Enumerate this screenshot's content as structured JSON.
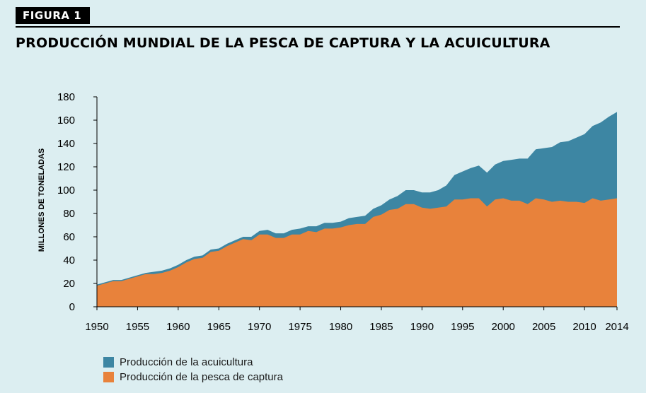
{
  "figure": {
    "label": "FIGURA 1",
    "title": "PRODUCCIÓN MUNDIAL DE LA PESCA DE CAPTURA Y LA ACUICULTURA"
  },
  "colors": {
    "aquaculture": "#3d86a3",
    "capture": "#e8823b",
    "background": "#dceef1"
  },
  "chart_data": {
    "type": "area",
    "stacked": true,
    "ylabel": "MILLONES DE TONELADAS",
    "xlabel": "",
    "ylim": [
      0,
      180
    ],
    "xlim": [
      1950,
      2014
    ],
    "yticks": [
      0,
      20,
      40,
      60,
      80,
      100,
      120,
      140,
      160,
      180
    ],
    "xticks": [
      1950,
      1955,
      1960,
      1965,
      1970,
      1975,
      1980,
      1985,
      1990,
      1995,
      2000,
      2005,
      2010,
      2014
    ],
    "grid": false,
    "legend_position": "bottom-left",
    "x": [
      1950,
      1951,
      1952,
      1953,
      1954,
      1955,
      1956,
      1957,
      1958,
      1959,
      1960,
      1961,
      1962,
      1963,
      1964,
      1965,
      1966,
      1967,
      1968,
      1969,
      1970,
      1971,
      1972,
      1973,
      1974,
      1975,
      1976,
      1977,
      1978,
      1979,
      1980,
      1981,
      1982,
      1983,
      1984,
      1985,
      1986,
      1987,
      1988,
      1989,
      1990,
      1991,
      1992,
      1993,
      1994,
      1995,
      1996,
      1997,
      1998,
      1999,
      2000,
      2001,
      2002,
      2003,
      2004,
      2005,
      2006,
      2007,
      2008,
      2009,
      2010,
      2011,
      2012,
      2013,
      2014
    ],
    "series": [
      {
        "name": "Producción de la pesca de captura",
        "values": [
          18,
          20,
          22,
          22,
          24,
          26,
          28,
          28,
          29,
          31,
          34,
          38,
          41,
          42,
          47,
          48,
          52,
          55,
          58,
          57,
          62,
          62,
          59,
          59,
          62,
          62,
          65,
          64,
          67,
          67,
          68,
          70,
          71,
          71,
          77,
          79,
          83,
          84,
          88,
          88,
          85,
          84,
          85,
          86,
          92,
          92,
          93,
          93,
          86,
          92,
          93,
          91,
          91,
          88,
          93,
          92,
          90,
          91,
          90,
          90,
          89,
          93,
          91,
          92,
          93
        ]
      },
      {
        "name": "Producción de la acuicultura",
        "values": [
          1,
          1,
          1,
          1,
          1,
          1,
          1,
          2,
          2,
          2,
          2,
          2,
          2,
          2,
          2,
          2,
          2,
          2,
          2,
          3,
          3,
          4,
          4,
          4,
          4,
          5,
          4,
          5,
          5,
          5,
          5,
          6,
          6,
          7,
          7,
          8,
          9,
          11,
          12,
          12,
          13,
          14,
          15,
          18,
          21,
          24,
          26,
          28,
          29,
          30,
          32,
          35,
          36,
          39,
          42,
          44,
          47,
          50,
          52,
          55,
          59,
          62,
          67,
          71,
          74
        ]
      }
    ]
  },
  "legend": {
    "items": [
      {
        "label": "Producción de la acuicultura",
        "color": "#3d86a3"
      },
      {
        "label": "Producción de la pesca de captura",
        "color": "#e8823b"
      }
    ]
  }
}
